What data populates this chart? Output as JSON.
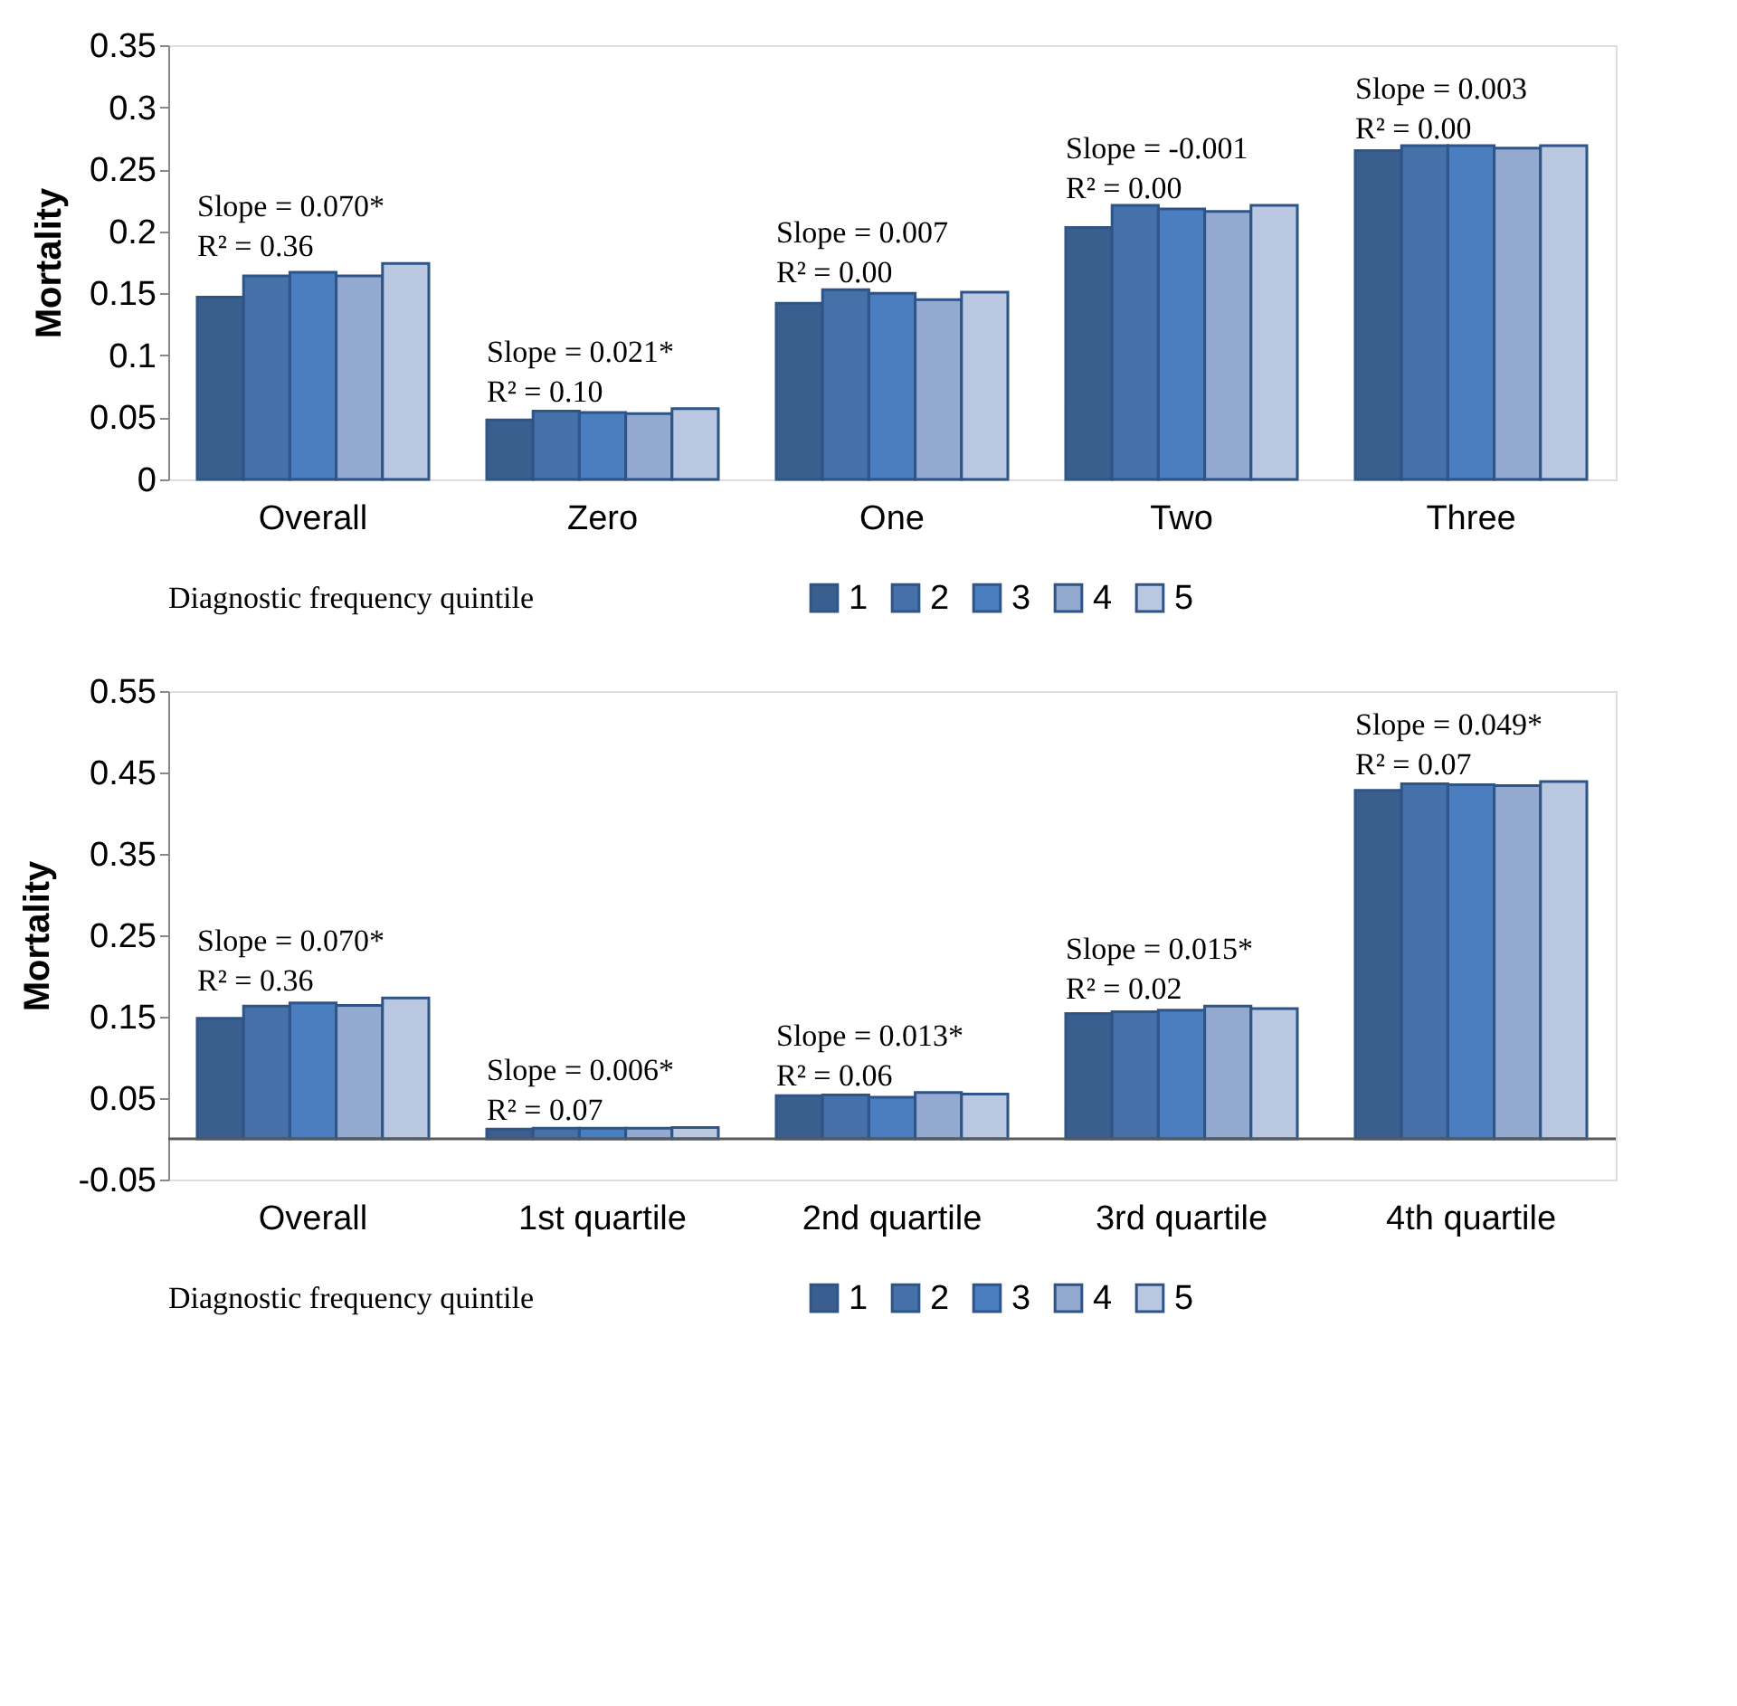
{
  "chart_data": [
    {
      "type": "bar",
      "ylabel": "Mortality",
      "legend_title": "Diagnostic frequency quintile",
      "legend": "bottom",
      "categories": [
        "Overall",
        "Zero",
        "One",
        "Two",
        "Three"
      ],
      "series": [
        {
          "name": "1",
          "color": "#3a5f8f",
          "values": [
            0.147,
            0.048,
            0.142,
            0.203,
            0.265
          ]
        },
        {
          "name": "2",
          "color": "#4571a8",
          "values": [
            0.164,
            0.055,
            0.153,
            0.221,
            0.269
          ]
        },
        {
          "name": "3",
          "color": "#4a7ebf",
          "values": [
            0.167,
            0.054,
            0.15,
            0.218,
            0.269
          ]
        },
        {
          "name": "4",
          "color": "#93a9cf",
          "values": [
            0.164,
            0.053,
            0.145,
            0.216,
            0.267
          ]
        },
        {
          "name": "5",
          "color": "#b9c7e0",
          "values": [
            0.174,
            0.057,
            0.151,
            0.221,
            0.269
          ]
        }
      ],
      "ylim": [
        0,
        0.35
      ],
      "yticks": [
        0,
        0.05,
        0.1,
        0.15,
        0.2,
        0.25,
        0.3,
        0.35
      ],
      "grid": false,
      "annotations": [
        "Slope = 0.070*\nR² = 0.36",
        "Slope = 0.021*\nR² = 0.10",
        "Slope = 0.007\nR² = 0.00",
        "Slope = -0.001\nR² = 0.00",
        "Slope = 0.003\nR² = 0.00"
      ]
    },
    {
      "type": "bar",
      "ylabel": "Mortality",
      "legend_title": "Diagnostic frequency quintile",
      "legend": "bottom",
      "categories": [
        "Overall",
        "1st quartile",
        "2nd quartile",
        "3rd quartile",
        "4th quartile"
      ],
      "series": [
        {
          "name": "1",
          "color": "#3a5f8f",
          "values": [
            0.148,
            0.012,
            0.053,
            0.154,
            0.428
          ]
        },
        {
          "name": "2",
          "color": "#4571a8",
          "values": [
            0.163,
            0.013,
            0.054,
            0.156,
            0.436
          ]
        },
        {
          "name": "3",
          "color": "#4a7ebf",
          "values": [
            0.167,
            0.013,
            0.051,
            0.158,
            0.435
          ]
        },
        {
          "name": "4",
          "color": "#93a9cf",
          "values": [
            0.164,
            0.013,
            0.057,
            0.163,
            0.434
          ]
        },
        {
          "name": "5",
          "color": "#b9c7e0",
          "values": [
            0.173,
            0.014,
            0.055,
            0.16,
            0.439
          ]
        }
      ],
      "ylim": [
        -0.05,
        0.55
      ],
      "yticks": [
        -0.05,
        0.05,
        0.15,
        0.25,
        0.35,
        0.45,
        0.55
      ],
      "grid": false,
      "ref_lines": [
        {
          "axis": "y",
          "value": 0,
          "color": "#595959"
        }
      ],
      "annotations": [
        "Slope = 0.070*\nR² = 0.36",
        "Slope = 0.006*\nR² = 0.07",
        "Slope = 0.013*\nR² = 0.06",
        "Slope = 0.015*\nR² = 0.02",
        "Slope = 0.049*\nR² = 0.07"
      ]
    }
  ]
}
